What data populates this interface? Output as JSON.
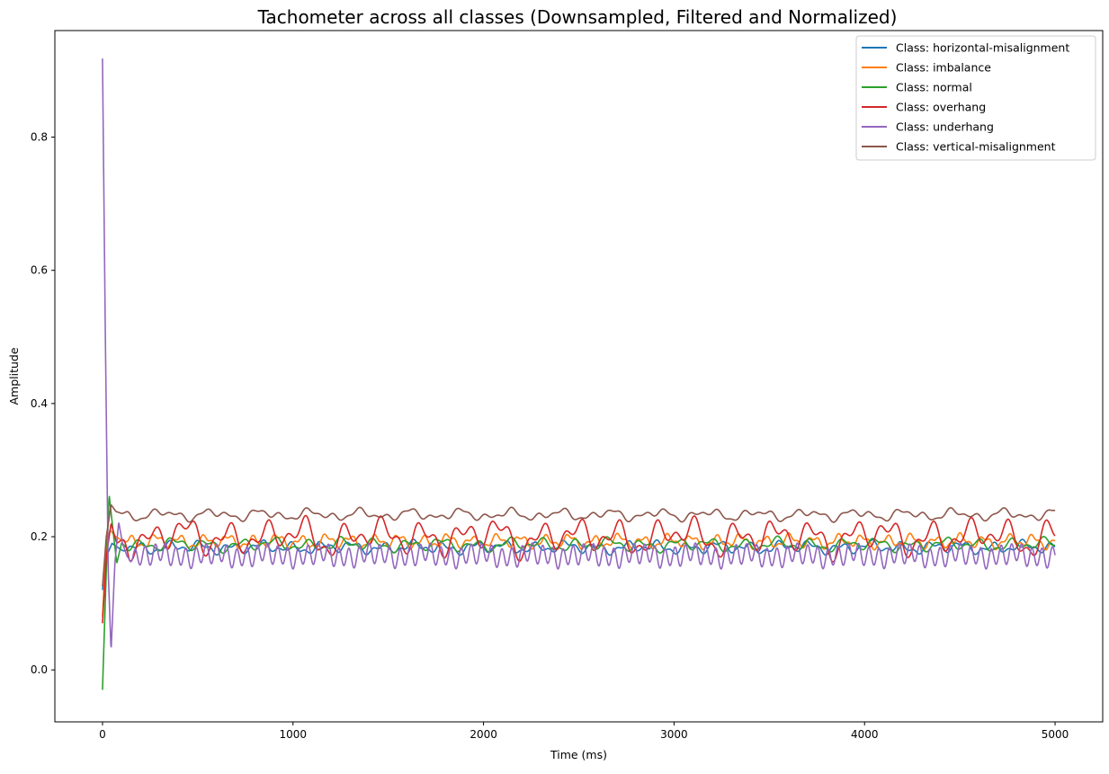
{
  "chart_data": {
    "type": "line",
    "title": "Tachometer across all classes (Downsampled, Filtered and Normalized)",
    "xlabel": "Time (ms)",
    "ylabel": "Amplitude",
    "xlim": [
      -250,
      5250
    ],
    "ylim": [
      -0.078,
      0.96
    ],
    "xticks": [
      0,
      1000,
      2000,
      3000,
      4000,
      5000
    ],
    "yticks": [
      0.0,
      0.2,
      0.4,
      0.6,
      0.8
    ],
    "xtick_labels": [
      "0",
      "1000",
      "2000",
      "3000",
      "4000",
      "5000"
    ],
    "ytick_labels": [
      "0.0",
      "0.2",
      "0.4",
      "0.6",
      "0.8"
    ],
    "grid": false,
    "legend_position": "top-right",
    "x_range_ms": [
      0,
      5000
    ],
    "series": [
      {
        "name": "Class: horizontal-misalignment",
        "color": "#1f77b4",
        "label": "Class: horizontal-misalignment",
        "start": [
          [
            0,
            0.12
          ],
          [
            20,
            0.17
          ],
          [
            50,
            0.19
          ],
          [
            100,
            0.18
          ]
        ],
        "mean": 0.184,
        "components": [
          [
            0.0062,
            160,
            0.3
          ],
          [
            0.0038,
            71,
            1.7
          ],
          [
            0.0022,
            400,
            0.9
          ]
        ]
      },
      {
        "name": "Class: imbalance",
        "color": "#ff7f0e",
        "label": "Class: imbalance",
        "start": [
          [
            0,
            0.08
          ],
          [
            20,
            0.19
          ],
          [
            40,
            0.21
          ],
          [
            70,
            0.2
          ],
          [
            100,
            0.195
          ]
        ],
        "mean": 0.193,
        "components": [
          [
            0.0075,
            128,
            0.5
          ],
          [
            0.0035,
            53,
            2.1
          ],
          [
            0.002,
            300,
            1.2
          ]
        ]
      },
      {
        "name": "Class: normal",
        "color": "#2ca02c",
        "label": "Class: normal",
        "start": [
          [
            0,
            -0.03
          ],
          [
            20,
            0.15
          ],
          [
            35,
            0.263
          ],
          [
            55,
            0.21
          ],
          [
            75,
            0.16
          ],
          [
            100,
            0.19
          ]
        ],
        "mean": 0.188,
        "components": [
          [
            0.0065,
            176,
            0.8
          ],
          [
            0.004,
            82,
            0.2
          ],
          [
            0.0025,
            450,
            2.2
          ]
        ]
      },
      {
        "name": "Class: overhang",
        "color": "#d62728",
        "label": "Class: overhang",
        "start": [
          [
            0,
            0.07
          ],
          [
            20,
            0.17
          ],
          [
            45,
            0.22
          ],
          [
            75,
            0.19
          ],
          [
            100,
            0.195
          ]
        ],
        "mean": 0.2,
        "components": [
          [
            0.016,
            205,
            0.3
          ],
          [
            0.011,
            97,
            1.4
          ],
          [
            0.007,
            520,
            2.7
          ],
          [
            0.005,
            333,
            0.9
          ]
        ]
      },
      {
        "name": "Class: underhang",
        "color": "#9467bd",
        "label": "Class: underhang",
        "start": [
          [
            0,
            0.918
          ],
          [
            15,
            0.5
          ],
          [
            30,
            0.15
          ],
          [
            45,
            0.028
          ],
          [
            65,
            0.16
          ],
          [
            85,
            0.222
          ],
          [
            105,
            0.19
          ],
          [
            130,
            0.17
          ]
        ],
        "mean": 0.172,
        "components": [
          [
            0.014,
            53.5,
            0.4
          ],
          [
            0.004,
            280,
            1.1
          ],
          [
            0.0025,
            107,
            2.3
          ]
        ]
      },
      {
        "name": "Class: vertical-misalignment",
        "color": "#8c564b",
        "label": "Class: vertical-misalignment",
        "start": [
          [
            0,
            0.125
          ],
          [
            20,
            0.2
          ],
          [
            45,
            0.248
          ],
          [
            70,
            0.238
          ],
          [
            100,
            0.235
          ]
        ],
        "mean": 0.233,
        "components": [
          [
            0.005,
            260,
            0.2
          ],
          [
            0.004,
            135,
            1.9
          ],
          [
            0.0025,
            72,
            2.8
          ]
        ]
      }
    ]
  }
}
